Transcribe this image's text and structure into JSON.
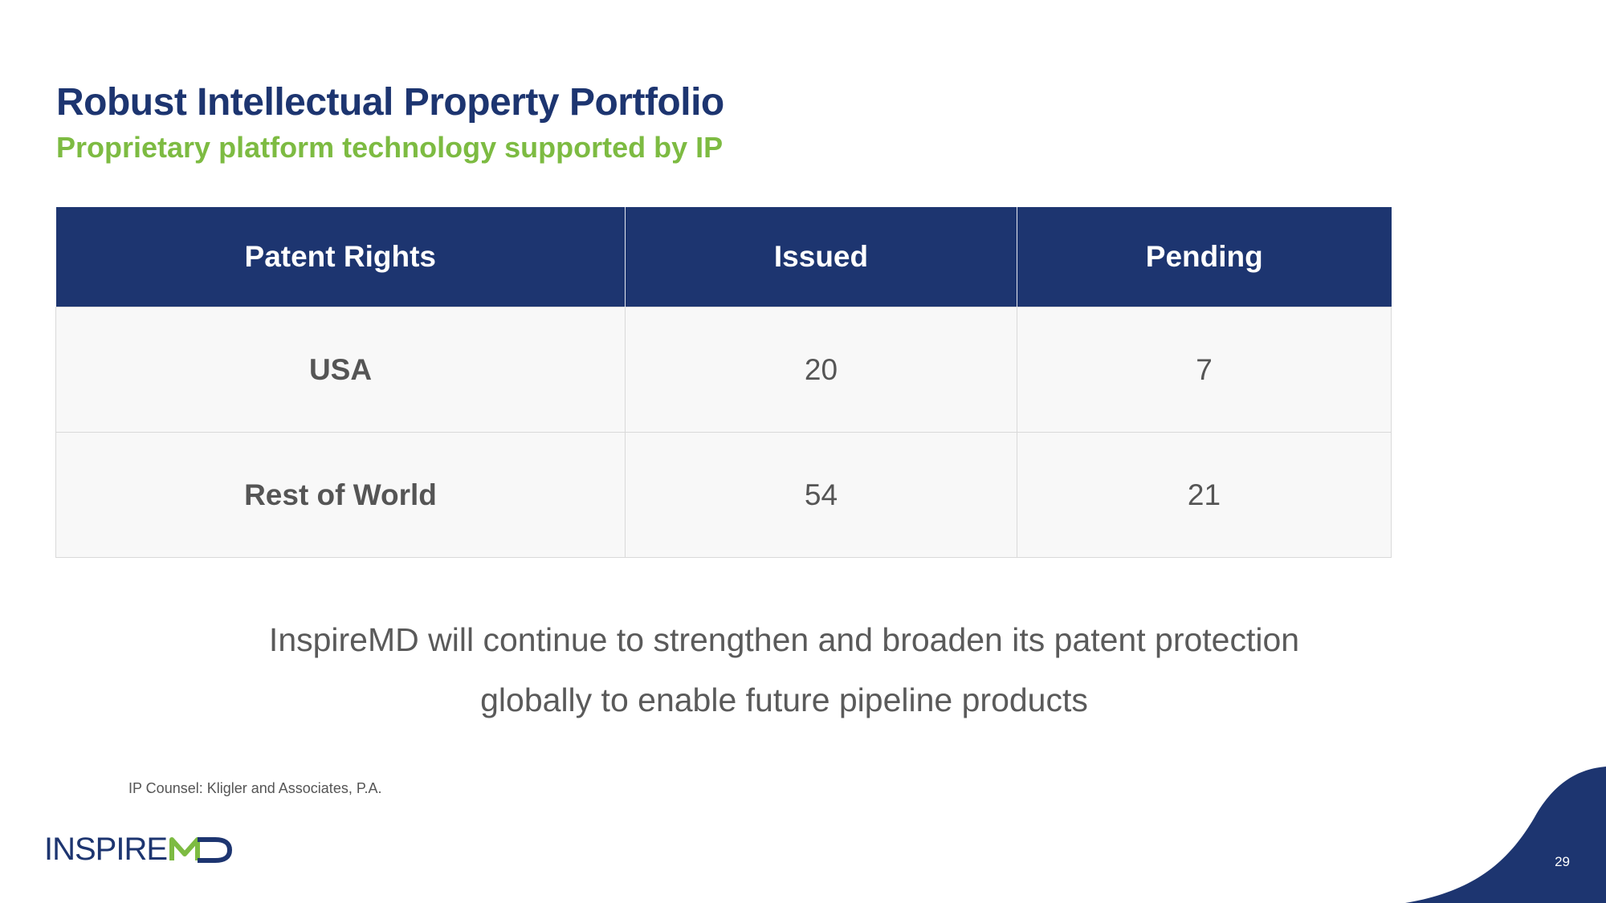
{
  "header": {
    "title": "Robust Intellectual Property Portfolio",
    "subtitle": "Proprietary platform technology supported by IP"
  },
  "table": {
    "columns": [
      "Patent Rights",
      "Issued",
      "Pending"
    ],
    "rows": [
      {
        "label": "USA",
        "issued": "20",
        "pending": "7"
      },
      {
        "label": "Rest of World",
        "issued": "54",
        "pending": "21"
      }
    ]
  },
  "statement": {
    "line1": "InspireMD will continue to strengthen and broaden its patent protection",
    "line2": "globally to enable future pipeline products"
  },
  "footnote": "IP Counsel: Kligler and Associates, P.A.",
  "logo": {
    "text": "INSPIRE",
    "mark": "MD",
    "icon": "inspiremd-md-logo-icon"
  },
  "page_number": "29",
  "colors": {
    "navy": "#1d3570",
    "green": "#7dbb42",
    "body_text": "#5a5a5a",
    "cell_bg": "#f8f8f8"
  }
}
